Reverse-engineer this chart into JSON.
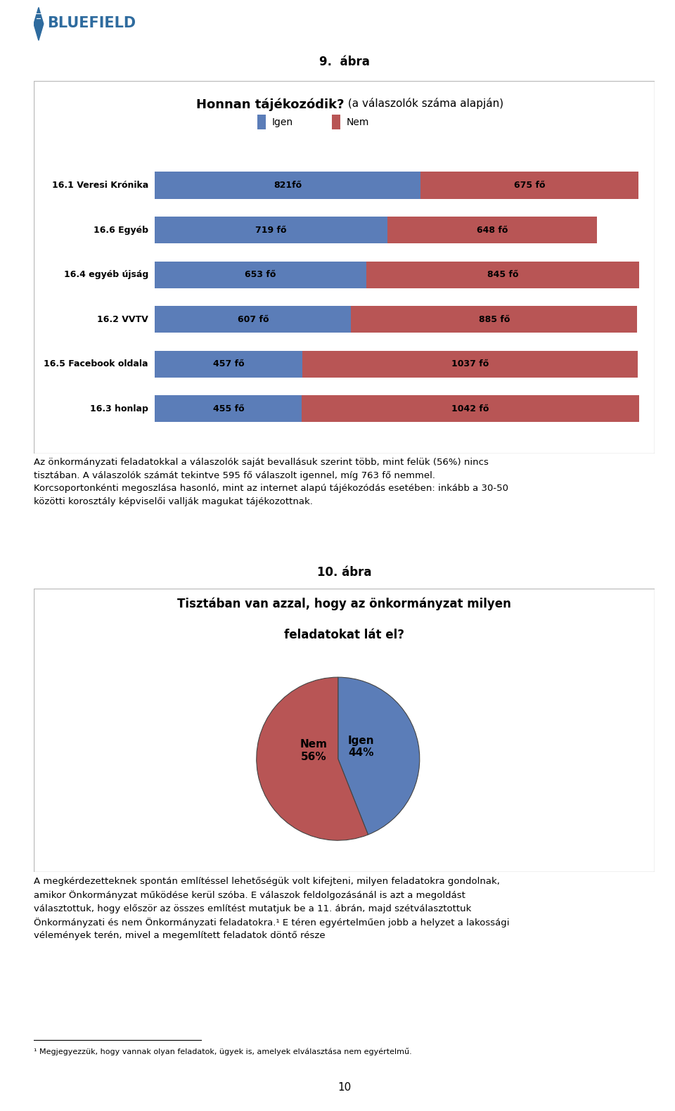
{
  "title_9": "9.  ábra",
  "chart_title_bold": "Honnan tájékozódik?",
  "chart_title_normal": " (a válaszolók száma alapján)",
  "legend_igen": "Igen",
  "legend_nem": "Nem",
  "categories": [
    "16.1 Veresi Krónika",
    "16.6 Egyéb",
    "16.4 egyéb újság",
    "16.2 VVTV",
    "16.5 Facebook oldala",
    "16.3 honlap"
  ],
  "igen_values": [
    821,
    719,
    653,
    607,
    457,
    455
  ],
  "nem_values": [
    675,
    648,
    845,
    885,
    1037,
    1042
  ],
  "igen_labels": [
    "821fő",
    "719 fő",
    "653 fő",
    "607 fő",
    "457 fő",
    "455 fő"
  ],
  "nem_labels": [
    "675 fő",
    "648 fő",
    "845 fő",
    "885 fő",
    "1037 fő",
    "1042 fő"
  ],
  "bar_color_igen": "#5B7DB8",
  "bar_color_nem": "#B85555",
  "title_10": "10. ábra",
  "pie_title_line1": "Tisztában van azzal, hogy az önkormányzat milyen",
  "pie_title_line2": "feladatokat lát el?",
  "pie_igen_pct": 44,
  "pie_nem_pct": 56,
  "pie_igen_color": "#5B7DB8",
  "pie_nem_color": "#B85555",
  "text_paragraph1": "Az önkormányzati feladatokkal a válaszolók saját bevallásuk szerint több, mint felük (56%) nincs tisztában. A válaszolók számát tekintve 595 fő válaszolt igennel, míg 763 fő nemmel. Korcsoportonkénti megoszlása hasonló, mint az internet alapú tájékozódás esetében: inkább a 30-50 közötti korosztály képviselői vallják magukat tájékozottnak.",
  "text_paragraph2": "A megkérdezetteknek spontán említéssel lehetőségük volt kifejteni, milyen feladatokra gondolnak, amikor Önkormányzat működése kerül szóba. E válaszok feldolgozásánál is azt a megoldást választottuk, hogy először az összes említést mutatjuk be a 11. ábrán, majd szétválasztottuk Önkormányzati és nem Önkormányzati feladatokra.¹ E téren egyértelműen jobb a helyzet a lakossági vélemények terén, mivel a megemlített feladatok döntő része",
  "footnote": "¹ Megjegyezzük, hogy vannak olyan feladatok, ügyek is, amelyek elválasztása nem egyértelmű.",
  "page_number": "10",
  "background_color": "#FFFFFF",
  "logo_text": "BLUEFIELD",
  "logo_color": "#2E6B9E"
}
